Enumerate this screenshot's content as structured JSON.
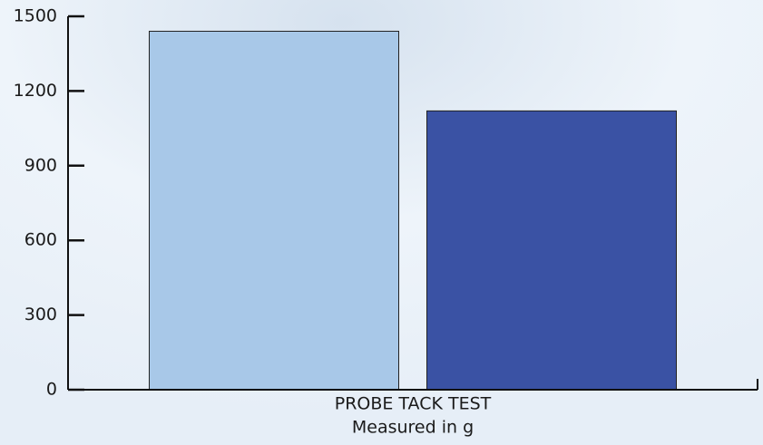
{
  "chart_data": {
    "type": "bar",
    "categories": [
      "PROBE TACK TEST"
    ],
    "xlabel": "Measured in g",
    "series": [
      {
        "color": "#a8c8e8",
        "values": [
          1440
        ]
      },
      {
        "color": "#3a52a4",
        "values": [
          1120
        ]
      }
    ],
    "ylim": [
      0,
      1500
    ],
    "yticks": [
      0,
      300,
      600,
      900,
      1200,
      1500
    ]
  }
}
